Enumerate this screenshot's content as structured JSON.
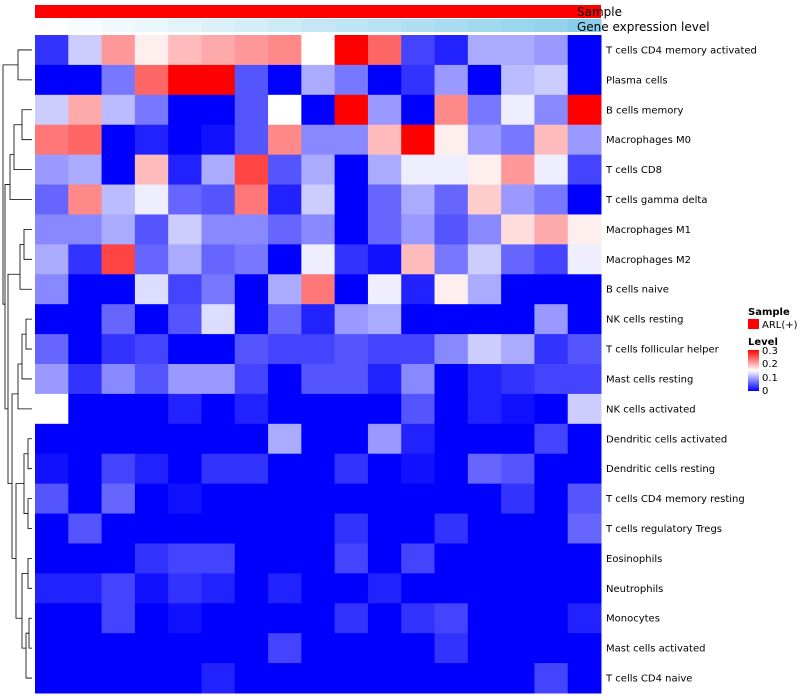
{
  "chart_data": {
    "type": "heatmap",
    "title": "",
    "annotation_tracks": [
      {
        "name": "Sample",
        "color": "#ff0000"
      },
      {
        "name": "Gene expression level",
        "gradient": [
          "#ffffff",
          "#87ceeb"
        ]
      }
    ],
    "rows": [
      "T cells CD4 memory activated",
      "Plasma cells",
      "B cells memory",
      "Macrophages M0",
      "T cells CD8",
      "T cells gamma delta",
      "Macrophages M1",
      "Macrophages M2",
      "B cells naive",
      "NK cells resting",
      "T cells follicular helper",
      "Mast cells resting",
      "NK cells activated",
      "Dendritic cells activated",
      "Dendritic cells resting",
      "T cells CD4 memory resting",
      "T cells regulatory  Tregs",
      "Eosinophils",
      "Neutrophils",
      "Monocytes",
      "Mast cells activated",
      "T cells CD4 naive"
    ],
    "n_columns": 17,
    "values": [
      [
        0.03,
        0.12,
        0.21,
        0.16,
        0.19,
        0.2,
        0.21,
        0.22,
        0.15,
        0.3,
        0.24,
        0.04,
        0.02,
        0.1,
        0.1,
        0.09,
        0.0
      ],
      [
        0.0,
        0.0,
        0.07,
        0.24,
        0.3,
        0.3,
        0.05,
        0.0,
        0.1,
        0.07,
        0.0,
        0.03,
        0.09,
        0.0,
        0.11,
        0.12,
        0.0
      ],
      [
        0.12,
        0.2,
        0.11,
        0.07,
        0.0,
        0.0,
        0.05,
        0.15,
        0.0,
        0.3,
        0.09,
        0.0,
        0.22,
        0.07,
        0.14,
        0.08,
        0.3
      ],
      [
        0.23,
        0.24,
        0.0,
        0.02,
        0.0,
        0.01,
        0.05,
        0.22,
        0.08,
        0.08,
        0.19,
        0.3,
        0.16,
        0.09,
        0.07,
        0.19,
        0.09
      ],
      [
        0.09,
        0.1,
        0.0,
        0.19,
        0.02,
        0.1,
        0.26,
        0.05,
        0.1,
        0.0,
        0.1,
        0.14,
        0.14,
        0.16,
        0.21,
        0.14,
        0.04
      ],
      [
        0.06,
        0.22,
        0.11,
        0.14,
        0.06,
        0.05,
        0.23,
        0.02,
        0.12,
        0.0,
        0.06,
        0.1,
        0.06,
        0.18,
        0.09,
        0.07,
        0.0
      ],
      [
        0.08,
        0.08,
        0.1,
        0.05,
        0.12,
        0.08,
        0.08,
        0.06,
        0.08,
        0.0,
        0.06,
        0.09,
        0.05,
        0.08,
        0.17,
        0.2,
        0.16
      ],
      [
        0.1,
        0.03,
        0.26,
        0.06,
        0.1,
        0.06,
        0.07,
        0.0,
        0.14,
        0.03,
        0.01,
        0.19,
        0.07,
        0.12,
        0.06,
        0.04,
        0.14
      ],
      [
        0.08,
        0.0,
        0.0,
        0.13,
        0.04,
        0.07,
        0.0,
        0.1,
        0.23,
        0.0,
        0.14,
        0.02,
        0.16,
        0.1,
        0.0,
        0.0,
        0.0
      ],
      [
        0.0,
        0.0,
        0.06,
        0.0,
        0.05,
        0.13,
        0.0,
        0.06,
        0.02,
        0.09,
        0.1,
        0.0,
        0.0,
        0.0,
        0.0,
        0.09,
        0.0
      ],
      [
        0.06,
        0.0,
        0.03,
        0.04,
        0.0,
        0.0,
        0.05,
        0.04,
        0.04,
        0.05,
        0.04,
        0.04,
        0.08,
        0.12,
        0.1,
        0.03,
        0.05
      ],
      [
        0.09,
        0.03,
        0.08,
        0.05,
        0.09,
        0.09,
        0.04,
        0.0,
        0.05,
        0.05,
        0.02,
        0.08,
        0.0,
        0.02,
        0.03,
        0.04,
        0.04
      ],
      [
        0.15,
        0.0,
        0.0,
        0.0,
        0.02,
        0.0,
        0.02,
        0.0,
        0.0,
        0.0,
        0.0,
        0.05,
        0.0,
        0.02,
        0.01,
        0.0,
        0.12
      ],
      [
        0.0,
        0.0,
        0.0,
        0.0,
        0.0,
        0.0,
        0.0,
        0.1,
        0.0,
        0.0,
        0.09,
        0.02,
        0.0,
        0.0,
        0.0,
        0.04,
        0.0
      ],
      [
        0.01,
        0.0,
        0.04,
        0.02,
        0.0,
        0.03,
        0.03,
        0.0,
        0.0,
        0.03,
        0.0,
        0.01,
        0.0,
        0.06,
        0.05,
        0.0,
        0.0
      ],
      [
        0.05,
        0.0,
        0.06,
        0.0,
        0.01,
        0.0,
        0.0,
        0.0,
        0.0,
        0.0,
        0.0,
        0.0,
        0.0,
        0.0,
        0.03,
        0.0,
        0.05
      ],
      [
        0.0,
        0.05,
        0.0,
        0.0,
        0.0,
        0.0,
        0.0,
        0.0,
        0.0,
        0.03,
        0.0,
        0.0,
        0.03,
        0.0,
        0.0,
        0.0,
        0.06
      ],
      [
        0.0,
        0.0,
        0.0,
        0.03,
        0.04,
        0.04,
        0.0,
        0.0,
        0.0,
        0.04,
        0.0,
        0.04,
        0.0,
        0.0,
        0.0,
        0.0,
        0.0
      ],
      [
        0.02,
        0.02,
        0.04,
        0.01,
        0.03,
        0.02,
        0.0,
        0.02,
        0.0,
        0.0,
        0.02,
        0.0,
        0.0,
        0.0,
        0.0,
        0.0,
        0.0
      ],
      [
        0.0,
        0.0,
        0.04,
        0.0,
        0.01,
        0.0,
        0.0,
        0.0,
        0.0,
        0.03,
        0.0,
        0.03,
        0.04,
        0.0,
        0.0,
        0.0,
        0.02
      ],
      [
        0.0,
        0.0,
        0.0,
        0.0,
        0.0,
        0.0,
        0.0,
        0.04,
        0.0,
        0.0,
        0.0,
        0.0,
        0.03,
        0.0,
        0.0,
        0.0,
        0.0
      ],
      [
        0.0,
        0.0,
        0.0,
        0.0,
        0.0,
        0.02,
        0.0,
        0.0,
        0.0,
        0.0,
        0.0,
        0.0,
        0.0,
        0.0,
        0.0,
        0.04,
        0.0
      ]
    ],
    "gene_expression_level": [
      0.0,
      0.06,
      0.12,
      0.18,
      0.24,
      0.3,
      0.36,
      0.42,
      0.48,
      0.54,
      0.6,
      0.66,
      0.72,
      0.78,
      0.84,
      0.9,
      1.0
    ],
    "color_scale": {
      "min": 0,
      "mid": 0.15,
      "max": 0.3,
      "low": "#0000ff",
      "midColor": "#ffffff",
      "high": "#ff0000"
    },
    "legend": {
      "sample_title": "Sample",
      "sample_entry": "ARL(+)",
      "level_title": "Level",
      "level_ticks": [
        "0.3",
        "0.2",
        "0.1",
        "0"
      ],
      "placement": "right"
    }
  }
}
